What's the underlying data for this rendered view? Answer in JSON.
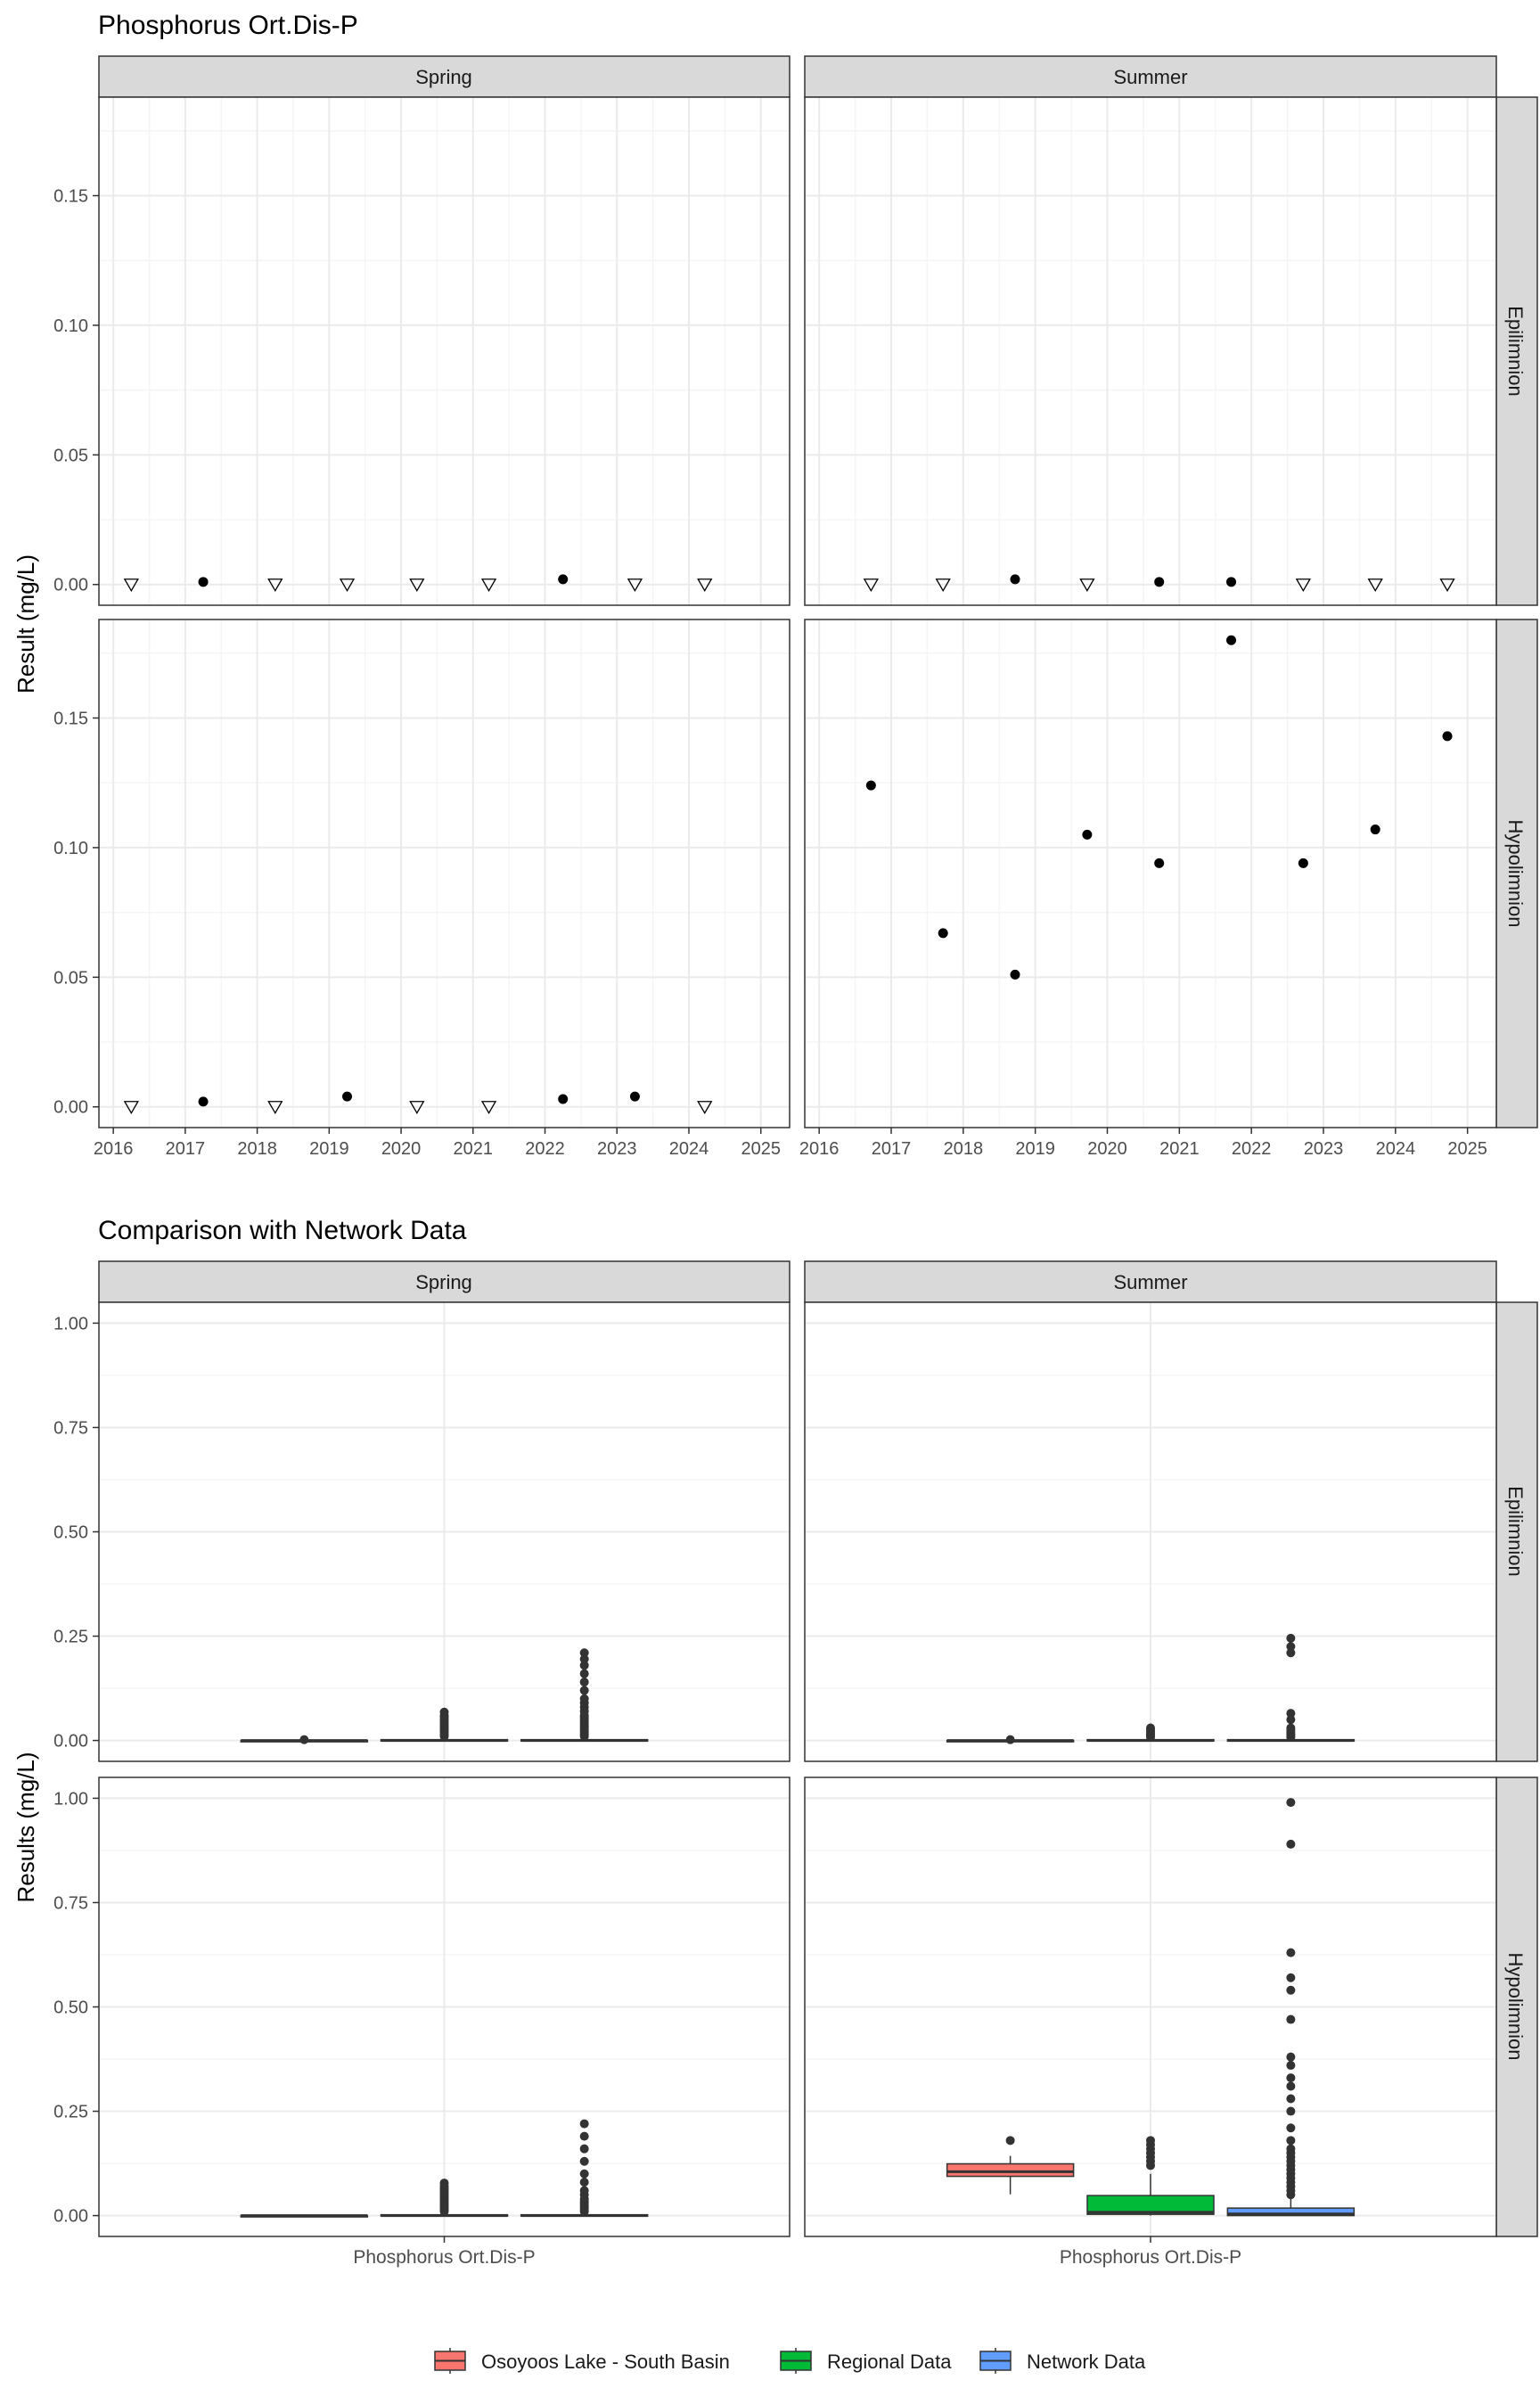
{
  "chart_data": [
    {
      "type": "scatter",
      "title": "Phosphorus Ort.Dis-P",
      "xlabel": "",
      "ylabel": "Result (mg/L)",
      "xlim": [
        2015.8,
        2025.4
      ],
      "ylim": [
        -0.008,
        0.188
      ],
      "x_ticks": [
        2016,
        2017,
        2018,
        2019,
        2020,
        2021,
        2022,
        2023,
        2024,
        2025
      ],
      "x_tick_labels": [
        "2016",
        "2017",
        "2018",
        "2019",
        "2020",
        "2021",
        "2022",
        "2023",
        "2024",
        "2025"
      ],
      "y_ticks": [
        0,
        0.05,
        0.1,
        0.15
      ],
      "y_tick_labels": [
        "0.00",
        "0.05",
        "0.10",
        "0.15"
      ],
      "grid": true,
      "facet_columns": [
        "Spring",
        "Summer"
      ],
      "facet_rows": [
        "Epilimnion",
        "Hypolimnion"
      ],
      "markers": {
        "detected": "filled circle",
        "below_detection": "open downward triangle"
      },
      "panels": [
        {
          "season": "Spring",
          "layer": "Epilimnion",
          "points": [
            {
              "x": 2016.25,
              "y": 0.0,
              "marker": "triangle"
            },
            {
              "x": 2017.25,
              "y": 0.001,
              "marker": "circle"
            },
            {
              "x": 2018.25,
              "y": 0.0,
              "marker": "triangle"
            },
            {
              "x": 2019.25,
              "y": 0.0,
              "marker": "triangle"
            },
            {
              "x": 2020.22,
              "y": 0.0,
              "marker": "triangle"
            },
            {
              "x": 2021.22,
              "y": 0.0,
              "marker": "triangle"
            },
            {
              "x": 2022.25,
              "y": 0.002,
              "marker": "circle"
            },
            {
              "x": 2023.25,
              "y": 0.0,
              "marker": "triangle"
            },
            {
              "x": 2024.22,
              "y": 0.0,
              "marker": "triangle"
            }
          ]
        },
        {
          "season": "Summer",
          "layer": "Epilimnion",
          "points": [
            {
              "x": 2016.72,
              "y": 0.0,
              "marker": "triangle"
            },
            {
              "x": 2017.72,
              "y": 0.0,
              "marker": "triangle"
            },
            {
              "x": 2018.72,
              "y": 0.002,
              "marker": "circle"
            },
            {
              "x": 2019.72,
              "y": 0.0,
              "marker": "triangle"
            },
            {
              "x": 2020.72,
              "y": 0.001,
              "marker": "circle"
            },
            {
              "x": 2021.72,
              "y": 0.001,
              "marker": "circle"
            },
            {
              "x": 2022.72,
              "y": 0.0,
              "marker": "triangle"
            },
            {
              "x": 2023.72,
              "y": 0.0,
              "marker": "triangle"
            },
            {
              "x": 2024.72,
              "y": 0.0,
              "marker": "triangle"
            }
          ]
        },
        {
          "season": "Spring",
          "layer": "Hypolimnion",
          "points": [
            {
              "x": 2016.25,
              "y": 0.0,
              "marker": "triangle"
            },
            {
              "x": 2017.25,
              "y": 0.002,
              "marker": "circle"
            },
            {
              "x": 2018.25,
              "y": 0.0,
              "marker": "triangle"
            },
            {
              "x": 2019.25,
              "y": 0.004,
              "marker": "circle"
            },
            {
              "x": 2020.22,
              "y": 0.0,
              "marker": "triangle"
            },
            {
              "x": 2021.22,
              "y": 0.0,
              "marker": "triangle"
            },
            {
              "x": 2022.25,
              "y": 0.003,
              "marker": "circle"
            },
            {
              "x": 2023.25,
              "y": 0.004,
              "marker": "circle"
            },
            {
              "x": 2024.22,
              "y": 0.0,
              "marker": "triangle"
            }
          ]
        },
        {
          "season": "Summer",
          "layer": "Hypolimnion",
          "points": [
            {
              "x": 2016.72,
              "y": 0.124,
              "marker": "circle"
            },
            {
              "x": 2017.72,
              "y": 0.067,
              "marker": "circle"
            },
            {
              "x": 2018.72,
              "y": 0.051,
              "marker": "circle"
            },
            {
              "x": 2019.72,
              "y": 0.105,
              "marker": "circle"
            },
            {
              "x": 2020.72,
              "y": 0.094,
              "marker": "circle"
            },
            {
              "x": 2021.72,
              "y": 0.18,
              "marker": "circle"
            },
            {
              "x": 2022.72,
              "y": 0.094,
              "marker": "circle"
            },
            {
              "x": 2023.72,
              "y": 0.107,
              "marker": "circle"
            },
            {
              "x": 2024.72,
              "y": 0.143,
              "marker": "circle"
            }
          ]
        }
      ]
    },
    {
      "type": "box",
      "title": "Comparison with Network Data",
      "xlabel": "",
      "ylabel": "Results (mg/L)",
      "category": "Phosphorus Ort.Dis-P",
      "ylim": [
        -0.05,
        1.05
      ],
      "y_ticks": [
        0,
        0.25,
        0.5,
        0.75,
        1.0
      ],
      "y_tick_labels": [
        "0.00",
        "0.25",
        "0.50",
        "0.75",
        "1.00"
      ],
      "grid": true,
      "facet_columns": [
        "Spring",
        "Summer"
      ],
      "facet_rows": [
        "Epilimnion",
        "Hypolimnion"
      ],
      "legend_position": "bottom",
      "series": [
        {
          "name": "Osoyoos Lake - South Basin",
          "color": "#F8766D"
        },
        {
          "name": "Regional Data",
          "color": "#00BA38"
        },
        {
          "name": "Network Data",
          "color": "#619CFF"
        }
      ],
      "panels": [
        {
          "season": "Spring",
          "layer": "Epilimnion",
          "boxes": [
            {
              "series": "Osoyoos Lake - South Basin",
              "q1": 0.0,
              "median": 0.0,
              "q3": 0.0,
              "whisker_low": 0.0,
              "whisker_high": 0.002,
              "outliers": [
                0.002
              ]
            },
            {
              "series": "Regional Data",
              "q1": 0.0,
              "median": 0.0,
              "q3": 0.002,
              "whisker_low": 0.0,
              "whisker_high": 0.004,
              "outliers": [
                0.01,
                0.015,
                0.02,
                0.025,
                0.03,
                0.035,
                0.04,
                0.045,
                0.05,
                0.055,
                0.06,
                0.068
              ]
            },
            {
              "series": "Network Data",
              "q1": 0.0,
              "median": 0.0,
              "q3": 0.002,
              "whisker_low": 0.0,
              "whisker_high": 0.004,
              "outliers": [
                0.01,
                0.015,
                0.02,
                0.025,
                0.03,
                0.035,
                0.04,
                0.045,
                0.05,
                0.055,
                0.06,
                0.07,
                0.08,
                0.09,
                0.1,
                0.12,
                0.14,
                0.16,
                0.18,
                0.195,
                0.21
              ]
            }
          ]
        },
        {
          "season": "Summer",
          "layer": "Epilimnion",
          "boxes": [
            {
              "series": "Osoyoos Lake - South Basin",
              "q1": 0.0,
              "median": 0.0,
              "q3": 0.0,
              "whisker_low": 0.0,
              "whisker_high": 0.002,
              "outliers": [
                0.002
              ]
            },
            {
              "series": "Regional Data",
              "q1": 0.0,
              "median": 0.0,
              "q3": 0.002,
              "whisker_low": 0.0,
              "whisker_high": 0.003,
              "outliers": [
                0.008,
                0.012,
                0.016,
                0.02,
                0.025,
                0.03
              ]
            },
            {
              "series": "Network Data",
              "q1": 0.0,
              "median": 0.0,
              "q3": 0.002,
              "whisker_low": 0.0,
              "whisker_high": 0.003,
              "outliers": [
                0.008,
                0.012,
                0.016,
                0.02,
                0.025,
                0.03,
                0.05,
                0.065,
                0.21,
                0.225,
                0.245
              ]
            }
          ]
        },
        {
          "season": "Spring",
          "layer": "Hypolimnion",
          "boxes": [
            {
              "series": "Osoyoos Lake - South Basin",
              "q1": 0.0,
              "median": 0.0,
              "q3": 0.0,
              "whisker_low": 0.0,
              "whisker_high": 0.003,
              "outliers": []
            },
            {
              "series": "Regional Data",
              "q1": 0.0,
              "median": 0.0,
              "q3": 0.002,
              "whisker_low": 0.0,
              "whisker_high": 0.004,
              "outliers": [
                0.01,
                0.015,
                0.02,
                0.025,
                0.03,
                0.035,
                0.04,
                0.045,
                0.05,
                0.055,
                0.06,
                0.065,
                0.07,
                0.078
              ]
            },
            {
              "series": "Network Data",
              "q1": 0.0,
              "median": 0.0,
              "q3": 0.002,
              "whisker_low": 0.0,
              "whisker_high": 0.004,
              "outliers": [
                0.01,
                0.015,
                0.02,
                0.025,
                0.03,
                0.035,
                0.04,
                0.05,
                0.06,
                0.08,
                0.1,
                0.13,
                0.16,
                0.19,
                0.22
              ]
            }
          ]
        },
        {
          "season": "Summer",
          "layer": "Hypolimnion",
          "boxes": [
            {
              "series": "Osoyoos Lake - South Basin",
              "q1": 0.094,
              "median": 0.105,
              "q3": 0.124,
              "whisker_low": 0.051,
              "whisker_high": 0.143,
              "outliers": [
                0.18
              ]
            },
            {
              "series": "Regional Data",
              "q1": 0.003,
              "median": 0.008,
              "q3": 0.048,
              "whisker_low": 0.0,
              "whisker_high": 0.1,
              "outliers": [
                0.12,
                0.13,
                0.14,
                0.15,
                0.16,
                0.17,
                0.18
              ]
            },
            {
              "series": "Network Data",
              "q1": 0.0,
              "median": 0.004,
              "q3": 0.018,
              "whisker_low": 0.0,
              "whisker_high": 0.04,
              "outliers": [
                0.05,
                0.06,
                0.07,
                0.08,
                0.09,
                0.1,
                0.11,
                0.12,
                0.13,
                0.14,
                0.15,
                0.16,
                0.18,
                0.21,
                0.25,
                0.28,
                0.31,
                0.33,
                0.36,
                0.38,
                0.47,
                0.54,
                0.57,
                0.63,
                0.89,
                0.99
              ]
            }
          ]
        }
      ]
    }
  ]
}
